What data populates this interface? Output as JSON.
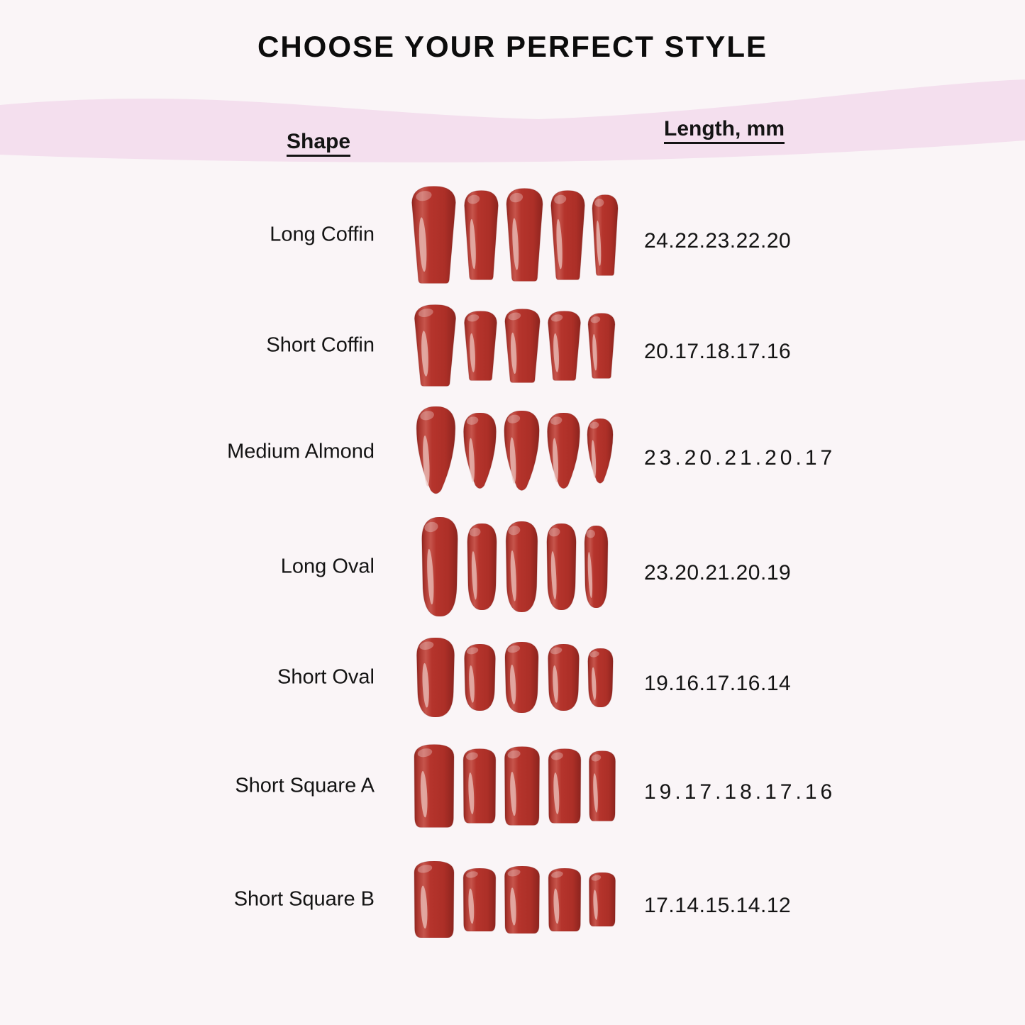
{
  "title": "CHOOSE YOUR PERFECT STYLE",
  "table": {
    "headers": {
      "shape": "Shape",
      "length": "Length, mm"
    },
    "rows": [
      {
        "shape": "Long Coffin",
        "lengths": "24.22.23.22.20",
        "mm": [
          24,
          22,
          23,
          22,
          20
        ],
        "nail_shape": "long-coffin"
      },
      {
        "shape": "Short Coffin",
        "lengths": "20.17.18.17.16",
        "mm": [
          20,
          17,
          18,
          17,
          16
        ],
        "nail_shape": "short-coffin"
      },
      {
        "shape": "Medium Almond",
        "lengths": "23.20.21.20.17",
        "mm": [
          23,
          20,
          21,
          20,
          17
        ],
        "nail_shape": "almond"
      },
      {
        "shape": "Long Oval",
        "lengths": "23.20.21.20.19",
        "mm": [
          23,
          20,
          21,
          20,
          19
        ],
        "nail_shape": "long-oval"
      },
      {
        "shape": "Short Oval",
        "lengths": "19.16.17.16.14",
        "mm": [
          19,
          16,
          17,
          16,
          14
        ],
        "nail_shape": "short-oval"
      },
      {
        "shape": "Short Square A",
        "lengths": "19.17.18.17.16",
        "mm": [
          19,
          17,
          18,
          17,
          16
        ],
        "nail_shape": "square"
      },
      {
        "shape": "Short Square B",
        "lengths": "17.14.15.14.12",
        "mm": [
          17,
          14,
          15,
          14,
          12
        ],
        "nail_shape": "square"
      }
    ]
  },
  "colors": {
    "background": "#faf5f7",
    "band_pink": "#f4dfee",
    "text": "#141414",
    "nail_red": "#b5342c",
    "nail_red_dark": "#8c241e",
    "nail_red_light": "#c96258",
    "nail_highlight": "#eecac5"
  },
  "chart_data": {
    "type": "table",
    "title": "CHOOSE YOUR PERFECT STYLE",
    "columns": [
      "Shape",
      "Length, mm"
    ],
    "rows": [
      {
        "shape": "Long Coffin",
        "lengths_mm": [
          24,
          22,
          23,
          22,
          20
        ]
      },
      {
        "shape": "Short Coffin",
        "lengths_mm": [
          20,
          17,
          18,
          17,
          16
        ]
      },
      {
        "shape": "Medium Almond",
        "lengths_mm": [
          23,
          20,
          21,
          20,
          17
        ]
      },
      {
        "shape": "Long Oval",
        "lengths_mm": [
          23,
          20,
          21,
          20,
          19
        ]
      },
      {
        "shape": "Short Oval",
        "lengths_mm": [
          19,
          16,
          17,
          16,
          14
        ]
      },
      {
        "shape": "Short Square A",
        "lengths_mm": [
          19,
          17,
          18,
          17,
          16
        ]
      },
      {
        "shape": "Short Square B",
        "lengths_mm": [
          17,
          14,
          15,
          14,
          12
        ]
      }
    ]
  }
}
